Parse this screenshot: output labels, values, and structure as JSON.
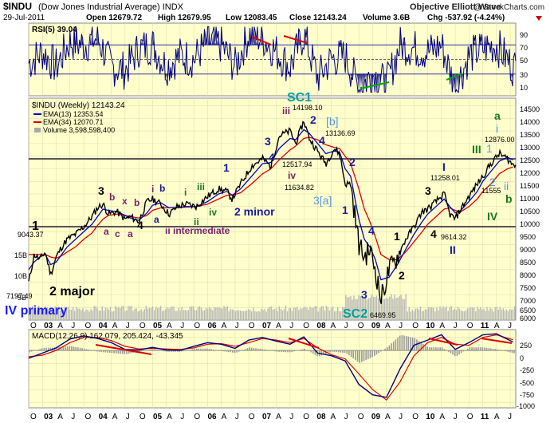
{
  "header": {
    "symbol": "$INDU",
    "name": "(Dow Jones Industrial Average) INDX",
    "date": "29-Jul-2011",
    "open": "Open 12679.72",
    "high": "High 12679.95",
    "low": "Low 12083.45",
    "close": "Close 12143.24",
    "volume": "Volume 3.6B",
    "change": "Chg -537.92 (-4.24%)",
    "brand": "Objective Elliott Wave",
    "copyright": "@ StockCharts.com"
  },
  "rsi_panel": {
    "label": "RSI(5) 39.04",
    "ticks": [
      "90",
      "70",
      "50",
      "30",
      "10"
    ]
  },
  "price_panel": {
    "legend_title": "$INDU (Weekly) 12143.24",
    "legend_ema13": "EMA(13) 12353.54",
    "legend_ema34": "EMA(34) 12070.71",
    "legend_volume": "Volume 3,598,598,400",
    "ticks": [
      "14500",
      "14000",
      "13500",
      "13000",
      "12500",
      "12000",
      "11500",
      "11000",
      "10500",
      "10000",
      "9500",
      "9000",
      "8500",
      "8000",
      "7500",
      "7000",
      "6500",
      "6000"
    ],
    "left_ticks": [
      "15B",
      "10B",
      "5B"
    ]
  },
  "macd_panel": {
    "label": "MACD(12,26,9) 162.079, 205.424, -43.345",
    "ticks": [
      "250",
      "0",
      "-250",
      "-500",
      "-750",
      "-1000"
    ]
  },
  "x_axis": {
    "labels": [
      "O",
      "03",
      "A",
      "J",
      "O",
      "04",
      "A",
      "J",
      "O",
      "05",
      "A",
      "J",
      "O",
      "06",
      "A",
      "J",
      "O",
      "07",
      "A",
      "J",
      "O",
      "08",
      "A",
      "J",
      "O",
      "09",
      "A",
      "J",
      "O",
      "10",
      "A",
      "J",
      "O",
      "11",
      "A",
      "J"
    ]
  },
  "annotations": {
    "p9043": "9043.37",
    "p7197": "7197.49",
    "p14198": "14198.10",
    "p12517": "12517.94",
    "p11634": "11634.82",
    "p13136": "13136.69",
    "p6469": "6469.95",
    "p11258": "11258.01",
    "p9614": "9614.32",
    "p12876": "12876.00",
    "p11555": "11555",
    "w1a": "1",
    "w2major": "2 major",
    "wIVprimary": "IV primary",
    "w3a": "3",
    "w4a": "4",
    "wa1": "a",
    "wb1": "b",
    "wc1": "c",
    "wx": "x",
    "wa2": "a",
    "wb2": "b",
    "wi1": "i",
    "wa3": "a",
    "wb3": "b",
    "wiiint": "ii intermediate",
    "wi2": "i",
    "wii": "ii",
    "wiii1": "iii",
    "wiv1": "iv",
    "w1b": "1",
    "w2minor": "2 minor",
    "w3b": "3",
    "w4b": "4",
    "wiii2": "iii",
    "wiv2": "iv",
    "wSC1": "SC1",
    "w2b": "2",
    "w4c": "4",
    "wbb": "[b]",
    "w3aa": "3[a]",
    "w1c": "1",
    "w2c": "2",
    "w3c": "3",
    "w4d": "4",
    "wSC2": "SC2",
    "w1d": "1",
    "w2d": "2",
    "w3d": "3",
    "w4e": "4",
    "wI": "I",
    "wII": "II",
    "wgi": "i",
    "wg1": "1",
    "wga": "a",
    "wgIII": "III",
    "wg2": "2",
    "wgii": "ii",
    "wgb": "b",
    "wgIV": "IV"
  },
  "chart_data": {
    "type": "line",
    "title": "$INDU (Dow Jones Industrial Average) INDX Weekly",
    "x_range": [
      2002.75,
      2011.6
    ],
    "price": {
      "ylim": [
        6000,
        14800
      ],
      "x": [
        2002.75,
        2002.85,
        2002.95,
        2003.05,
        2003.15,
        2003.25,
        2003.35,
        2003.45,
        2003.6,
        2003.75,
        2003.9,
        2004.0,
        2004.1,
        2004.2,
        2004.35,
        2004.5,
        2004.6,
        2004.75,
        2004.9,
        2005.0,
        2005.15,
        2005.3,
        2005.45,
        2005.6,
        2005.8,
        2006.0,
        2006.2,
        2006.35,
        2006.45,
        2006.6,
        2006.8,
        2007.0,
        2007.15,
        2007.3,
        2007.5,
        2007.6,
        2007.75,
        2007.85,
        2008.0,
        2008.15,
        2008.3,
        2008.4,
        2008.5,
        2008.6,
        2008.75,
        2008.85,
        2008.95,
        2009.05,
        2009.15,
        2009.3,
        2009.45,
        2009.6,
        2009.75,
        2009.9,
        2010.0,
        2010.15,
        2010.3,
        2010.4,
        2010.5,
        2010.6,
        2010.75,
        2010.9,
        2011.0,
        2011.15,
        2011.3,
        2011.45,
        2011.55
      ],
      "close": [
        7500,
        8600,
        8400,
        8700,
        7800,
        8500,
        8900,
        9200,
        9400,
        9700,
        10100,
        10450,
        10600,
        10200,
        10300,
        10000,
        10100,
        9900,
        10700,
        10800,
        10600,
        10200,
        10500,
        10600,
        10500,
        10900,
        11200,
        11100,
        10800,
        11400,
        12100,
        12400,
        12100,
        13300,
        13500,
        13000,
        13900,
        13200,
        12700,
        12200,
        12800,
        12600,
        11400,
        11400,
        9000,
        8500,
        8800,
        8000,
        6800,
        8000,
        8500,
        9200,
        9700,
        10300,
        10400,
        10700,
        11000,
        10200,
        10000,
        10400,
        10900,
        11400,
        11700,
        12200,
        12600,
        12400,
        12143
      ],
      "ema13": [
        8000,
        8300,
        8500,
        8600,
        8200,
        8300,
        8600,
        8900,
        9200,
        9500,
        9800,
        10100,
        10400,
        10350,
        10300,
        10150,
        10050,
        9950,
        10250,
        10550,
        10650,
        10450,
        10450,
        10500,
        10500,
        10700,
        11000,
        11100,
        10950,
        11200,
        11700,
        12200,
        12250,
        12800,
        13200,
        13150,
        13550,
        13400,
        13000,
        12600,
        12700,
        12650,
        12000,
        11700,
        10000,
        9200,
        8900,
        8400,
        7600,
        7700,
        8200,
        8800,
        9400,
        9900,
        10200,
        10500,
        10800,
        10500,
        10250,
        10350,
        10700,
        11100,
        11500,
        11900,
        12300,
        12450,
        12353
      ],
      "ema34": [
        8600,
        8600,
        8600,
        8600,
        8500,
        8450,
        8550,
        8700,
        8900,
        9200,
        9450,
        9750,
        10000,
        10150,
        10200,
        10150,
        10100,
        10050,
        10150,
        10350,
        10450,
        10450,
        10450,
        10480,
        10500,
        10600,
        10800,
        10950,
        10950,
        11050,
        11400,
        11800,
        12000,
        12350,
        12750,
        12900,
        13200,
        13250,
        13150,
        12950,
        12850,
        12800,
        12500,
        12200,
        11200,
        10400,
        9900,
        9300,
        8600,
        8400,
        8400,
        8700,
        9100,
        9500,
        9800,
        10100,
        10400,
        10450,
        10350,
        10300,
        10500,
        10800,
        11100,
        11400,
        11800,
        12000,
        12070
      ],
      "volume_scale": "0 to 15B",
      "key_points": [
        {
          "date": 2002.78,
          "value": 9043.37
        },
        {
          "date": 2002.8,
          "value": 7197.49
        },
        {
          "date": 2007.78,
          "value": 14198.1
        },
        {
          "date": 2008.25,
          "value": 12517.94
        },
        {
          "date": 2008.2,
          "value": 11634.82
        },
        {
          "date": 2008.38,
          "value": 13136.69
        },
        {
          "date": 2009.18,
          "value": 6469.95
        },
        {
          "date": 2010.3,
          "value": 11258.01
        },
        {
          "date": 2010.5,
          "value": 9614.32
        },
        {
          "date": 2011.33,
          "value": 12876.0
        },
        {
          "date": 2011.2,
          "value": 11555
        }
      ]
    },
    "rsi": {
      "ylim": [
        0,
        100
      ],
      "levels": [
        30,
        50,
        70
      ],
      "x": [
        2002.75,
        2003.0,
        2003.25,
        2003.5,
        2003.75,
        2004.0,
        2004.25,
        2004.5,
        2004.75,
        2005.0,
        2005.25,
        2005.5,
        2005.75,
        2006.0,
        2006.25,
        2006.5,
        2006.75,
        2007.0,
        2007.25,
        2007.5,
        2007.75,
        2008.0,
        2008.25,
        2008.5,
        2008.75,
        2009.0,
        2009.25,
        2009.5,
        2009.75,
        2010.0,
        2010.25,
        2010.5,
        2010.75,
        2011.0,
        2011.25,
        2011.55
      ],
      "values": [
        45,
        60,
        40,
        75,
        70,
        80,
        40,
        35,
        65,
        70,
        40,
        55,
        50,
        75,
        70,
        40,
        85,
        80,
        60,
        40,
        85,
        25,
        50,
        55,
        10,
        30,
        15,
        70,
        65,
        60,
        70,
        10,
        55,
        65,
        70,
        39.04
      ]
    },
    "macd": {
      "ylim": [
        -1100,
        400
      ],
      "x": [
        2002.75,
        2003.0,
        2003.25,
        2003.5,
        2003.75,
        2004.0,
        2004.25,
        2004.5,
        2004.75,
        2005.0,
        2005.25,
        2005.5,
        2005.75,
        2006.0,
        2006.25,
        2006.5,
        2006.75,
        2007.0,
        2007.25,
        2007.5,
        2007.75,
        2008.0,
        2008.25,
        2008.5,
        2008.75,
        2009.0,
        2009.25,
        2009.5,
        2009.75,
        2010.0,
        2010.25,
        2010.5,
        2010.75,
        2011.0,
        2011.25,
        2011.55
      ],
      "macd": [
        -150,
        -50,
        50,
        220,
        280,
        230,
        150,
        20,
        10,
        60,
        10,
        0,
        80,
        150,
        120,
        40,
        200,
        250,
        180,
        120,
        260,
        -50,
        -100,
        -200,
        -650,
        -850,
        -900,
        -350,
        100,
        200,
        300,
        20,
        150,
        300,
        320,
        162.079
      ],
      "signal": [
        -120,
        -90,
        0,
        150,
        250,
        250,
        190,
        80,
        30,
        40,
        30,
        20,
        50,
        120,
        130,
        80,
        150,
        230,
        200,
        150,
        230,
        50,
        -80,
        -160,
        -450,
        -750,
        -950,
        -600,
        -100,
        150,
        250,
        120,
        100,
        250,
        300,
        205.424
      ],
      "histogram_last": -43.345
    }
  }
}
